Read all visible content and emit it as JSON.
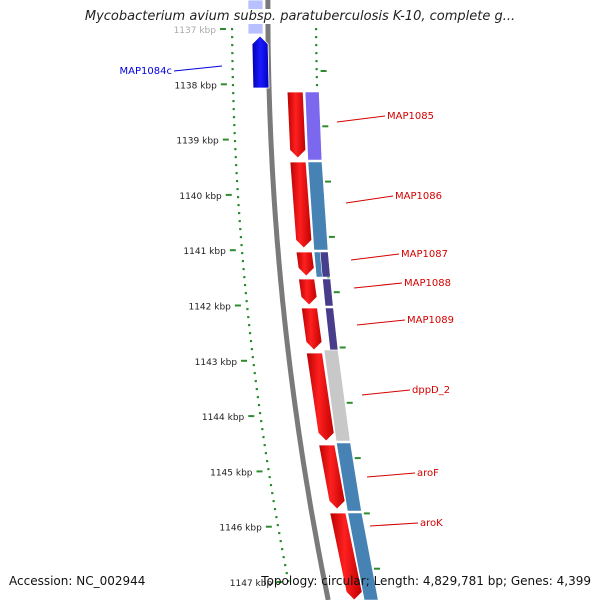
{
  "title": "Mycobacterium avium subsp. paratuberculosis K-10, complete g...",
  "footer": {
    "accession_label": "Accession:",
    "accession_value": "NC_002944",
    "topology_label": "Topology:",
    "topology_value": "circular;",
    "length_label": "Length:",
    "length_value": "4,829,781 bp;",
    "genes_label": "Genes:",
    "genes_value": "4,399"
  },
  "ticks": [
    {
      "label": "1137 kbp",
      "faded": true
    },
    {
      "label": "1138 kbp"
    },
    {
      "label": "1139 kbp"
    },
    {
      "label": "1140 kbp"
    },
    {
      "label": "1141 kbp"
    },
    {
      "label": "1142 kbp"
    },
    {
      "label": "1143 kbp"
    },
    {
      "label": "1144 kbp"
    },
    {
      "label": "1145 kbp"
    },
    {
      "label": "1146 kbp"
    },
    {
      "label": "1147 kbp"
    }
  ],
  "genes": [
    {
      "label": "MAP1084c",
      "strand": "reverse",
      "color": "#0000e0"
    },
    {
      "label": "MAP1085",
      "strand": "forward",
      "color": "#d40000"
    },
    {
      "label": "MAP1086",
      "strand": "forward",
      "color": "#d40000"
    },
    {
      "label": "MAP1087",
      "strand": "forward",
      "color": "#d40000"
    },
    {
      "label": "MAP1088",
      "strand": "forward",
      "color": "#d40000"
    },
    {
      "label": "MAP1089",
      "strand": "forward",
      "color": "#d40000"
    },
    {
      "label": "dppD_2",
      "strand": "forward",
      "color": "#d40000"
    },
    {
      "label": "aroF",
      "strand": "forward",
      "color": "#d40000"
    },
    {
      "label": "aroK",
      "strand": "forward",
      "color": "#d40000"
    }
  ],
  "colors": {
    "backbone": "#8a8a8a",
    "tick_dots": "#2e8b2e",
    "forward_gene": "#ff0000",
    "reverse_gene": "#0000ff",
    "cog_purple": "#7b68ee",
    "cog_steelblue": "#4682b4",
    "cog_darkslate": "#483d8b",
    "cog_gray": "#c8c8c8"
  }
}
